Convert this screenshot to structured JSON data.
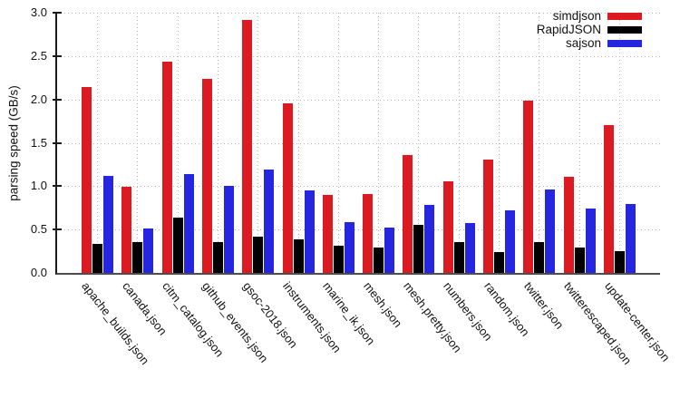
{
  "chart_data": {
    "type": "bar",
    "title": "",
    "ylabel": "parsing speed (GB/s)",
    "ylim": [
      0,
      3.0
    ],
    "ytick_step": 0.5,
    "ytick_labels": [
      "0.0",
      "0.5",
      "1.0",
      "1.5",
      "2.0",
      "2.5",
      "3.0"
    ],
    "grid": true,
    "legend_position": "top-right",
    "categories": [
      "apache_builds.json",
      "canada.json",
      "citm_catalog.json",
      "github_events.json",
      "gsoc-2018.json",
      "instruments.json",
      "marine_ik.json",
      "mesh.json",
      "mesh.pretty.json",
      "numbers.json",
      "random.json",
      "twitter.json",
      "twitterescaped.json",
      "update-center.json"
    ],
    "series": [
      {
        "name": "simdjson",
        "color": "#dc1a22",
        "values": [
          2.14,
          0.99,
          2.44,
          2.24,
          2.92,
          1.95,
          0.9,
          0.91,
          1.36,
          1.06,
          1.31,
          1.99,
          1.11,
          1.7
        ]
      },
      {
        "name": "RapidJSON",
        "color": "#000000",
        "values": [
          0.33,
          0.36,
          0.64,
          0.36,
          0.42,
          0.39,
          0.31,
          0.29,
          0.55,
          0.36,
          0.24,
          0.36,
          0.29,
          0.25
        ]
      },
      {
        "name": "sajson",
        "color": "#2626e0",
        "values": [
          1.12,
          0.51,
          1.14,
          1.0,
          1.19,
          0.95,
          0.59,
          0.52,
          0.78,
          0.57,
          0.72,
          0.96,
          0.74,
          0.79
        ]
      }
    ]
  }
}
